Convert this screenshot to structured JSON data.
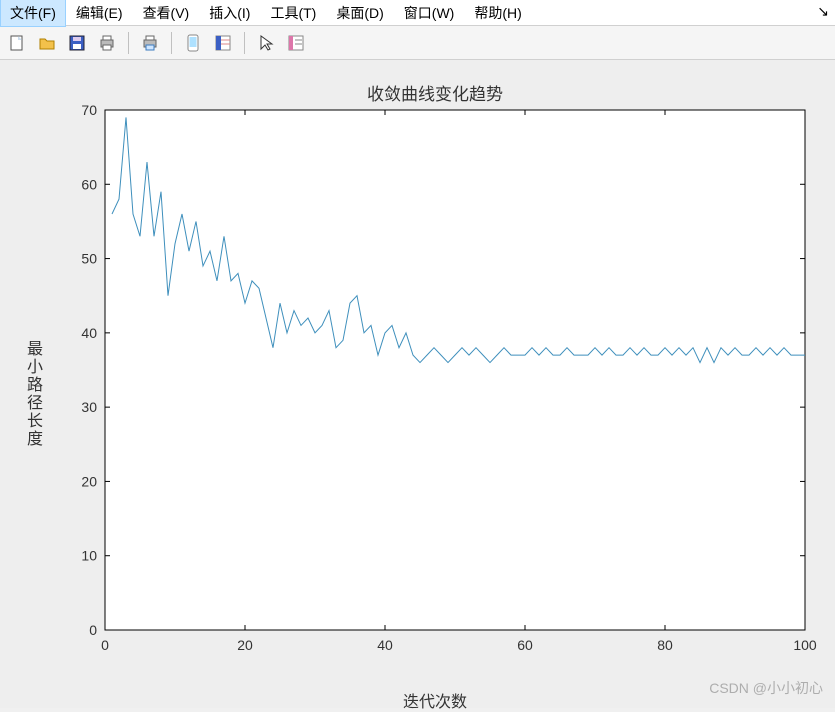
{
  "menu": {
    "items": [
      "文件(F)",
      "编辑(E)",
      "查看(V)",
      "插入(I)",
      "工具(T)",
      "桌面(D)",
      "窗口(W)",
      "帮助(H)"
    ],
    "active_index": 0,
    "tail_glyph": "↘"
  },
  "toolbar": {
    "icons": [
      "new-file",
      "open-file",
      "save",
      "print",
      "print-figure",
      "",
      "phone",
      "grid-panel",
      "",
      "cursor",
      "insert-legend"
    ]
  },
  "chart": {
    "type": "line",
    "title": "收敛曲线变化趋势",
    "xlabel": "迭代次数",
    "ylabel": "最小路径长度",
    "title_fontsize": 17,
    "label_fontsize": 16,
    "tick_fontsize": 14,
    "background_color": "#ffffff",
    "figure_bg": "#eeeeee",
    "axis_color": "#000000",
    "grid_on": false,
    "line_color": "#3e8fbc",
    "line_width": 1,
    "xlim": [
      0,
      100
    ],
    "ylim": [
      0,
      70
    ],
    "xticks": [
      0,
      20,
      40,
      60,
      80,
      100
    ],
    "yticks": [
      0,
      10,
      20,
      30,
      40,
      50,
      60,
      70
    ],
    "x": [
      1,
      2,
      3,
      4,
      5,
      6,
      7,
      8,
      9,
      10,
      11,
      12,
      13,
      14,
      15,
      16,
      17,
      18,
      19,
      20,
      21,
      22,
      23,
      24,
      25,
      26,
      27,
      28,
      29,
      30,
      31,
      32,
      33,
      34,
      35,
      36,
      37,
      38,
      39,
      40,
      41,
      42,
      43,
      44,
      45,
      46,
      47,
      48,
      49,
      50,
      51,
      52,
      53,
      54,
      55,
      56,
      57,
      58,
      59,
      60,
      61,
      62,
      63,
      64,
      65,
      66,
      67,
      68,
      69,
      70,
      71,
      72,
      73,
      74,
      75,
      76,
      77,
      78,
      79,
      80,
      81,
      82,
      83,
      84,
      85,
      86,
      87,
      88,
      89,
      90,
      91,
      92,
      93,
      94,
      95,
      96,
      97,
      98,
      99,
      100
    ],
    "y": [
      56,
      58,
      69,
      56,
      53,
      63,
      53,
      59,
      45,
      52,
      56,
      51,
      55,
      49,
      51,
      47,
      53,
      47,
      48,
      44,
      47,
      46,
      42,
      38,
      44,
      40,
      43,
      41,
      42,
      40,
      41,
      43,
      38,
      39,
      44,
      45,
      40,
      41,
      37,
      40,
      41,
      38,
      40,
      37,
      36,
      37,
      38,
      37,
      36,
      37,
      38,
      37,
      38,
      37,
      36,
      37,
      38,
      37,
      37,
      37,
      38,
      37,
      38,
      37,
      37,
      38,
      37,
      37,
      37,
      38,
      37,
      38,
      37,
      37,
      38,
      37,
      38,
      37,
      37,
      38,
      37,
      38,
      37,
      38,
      36,
      38,
      36,
      38,
      37,
      38,
      37,
      37,
      38,
      37,
      38,
      37,
      38,
      37,
      37,
      37
    ]
  },
  "watermark": "CSDN @小小初心"
}
